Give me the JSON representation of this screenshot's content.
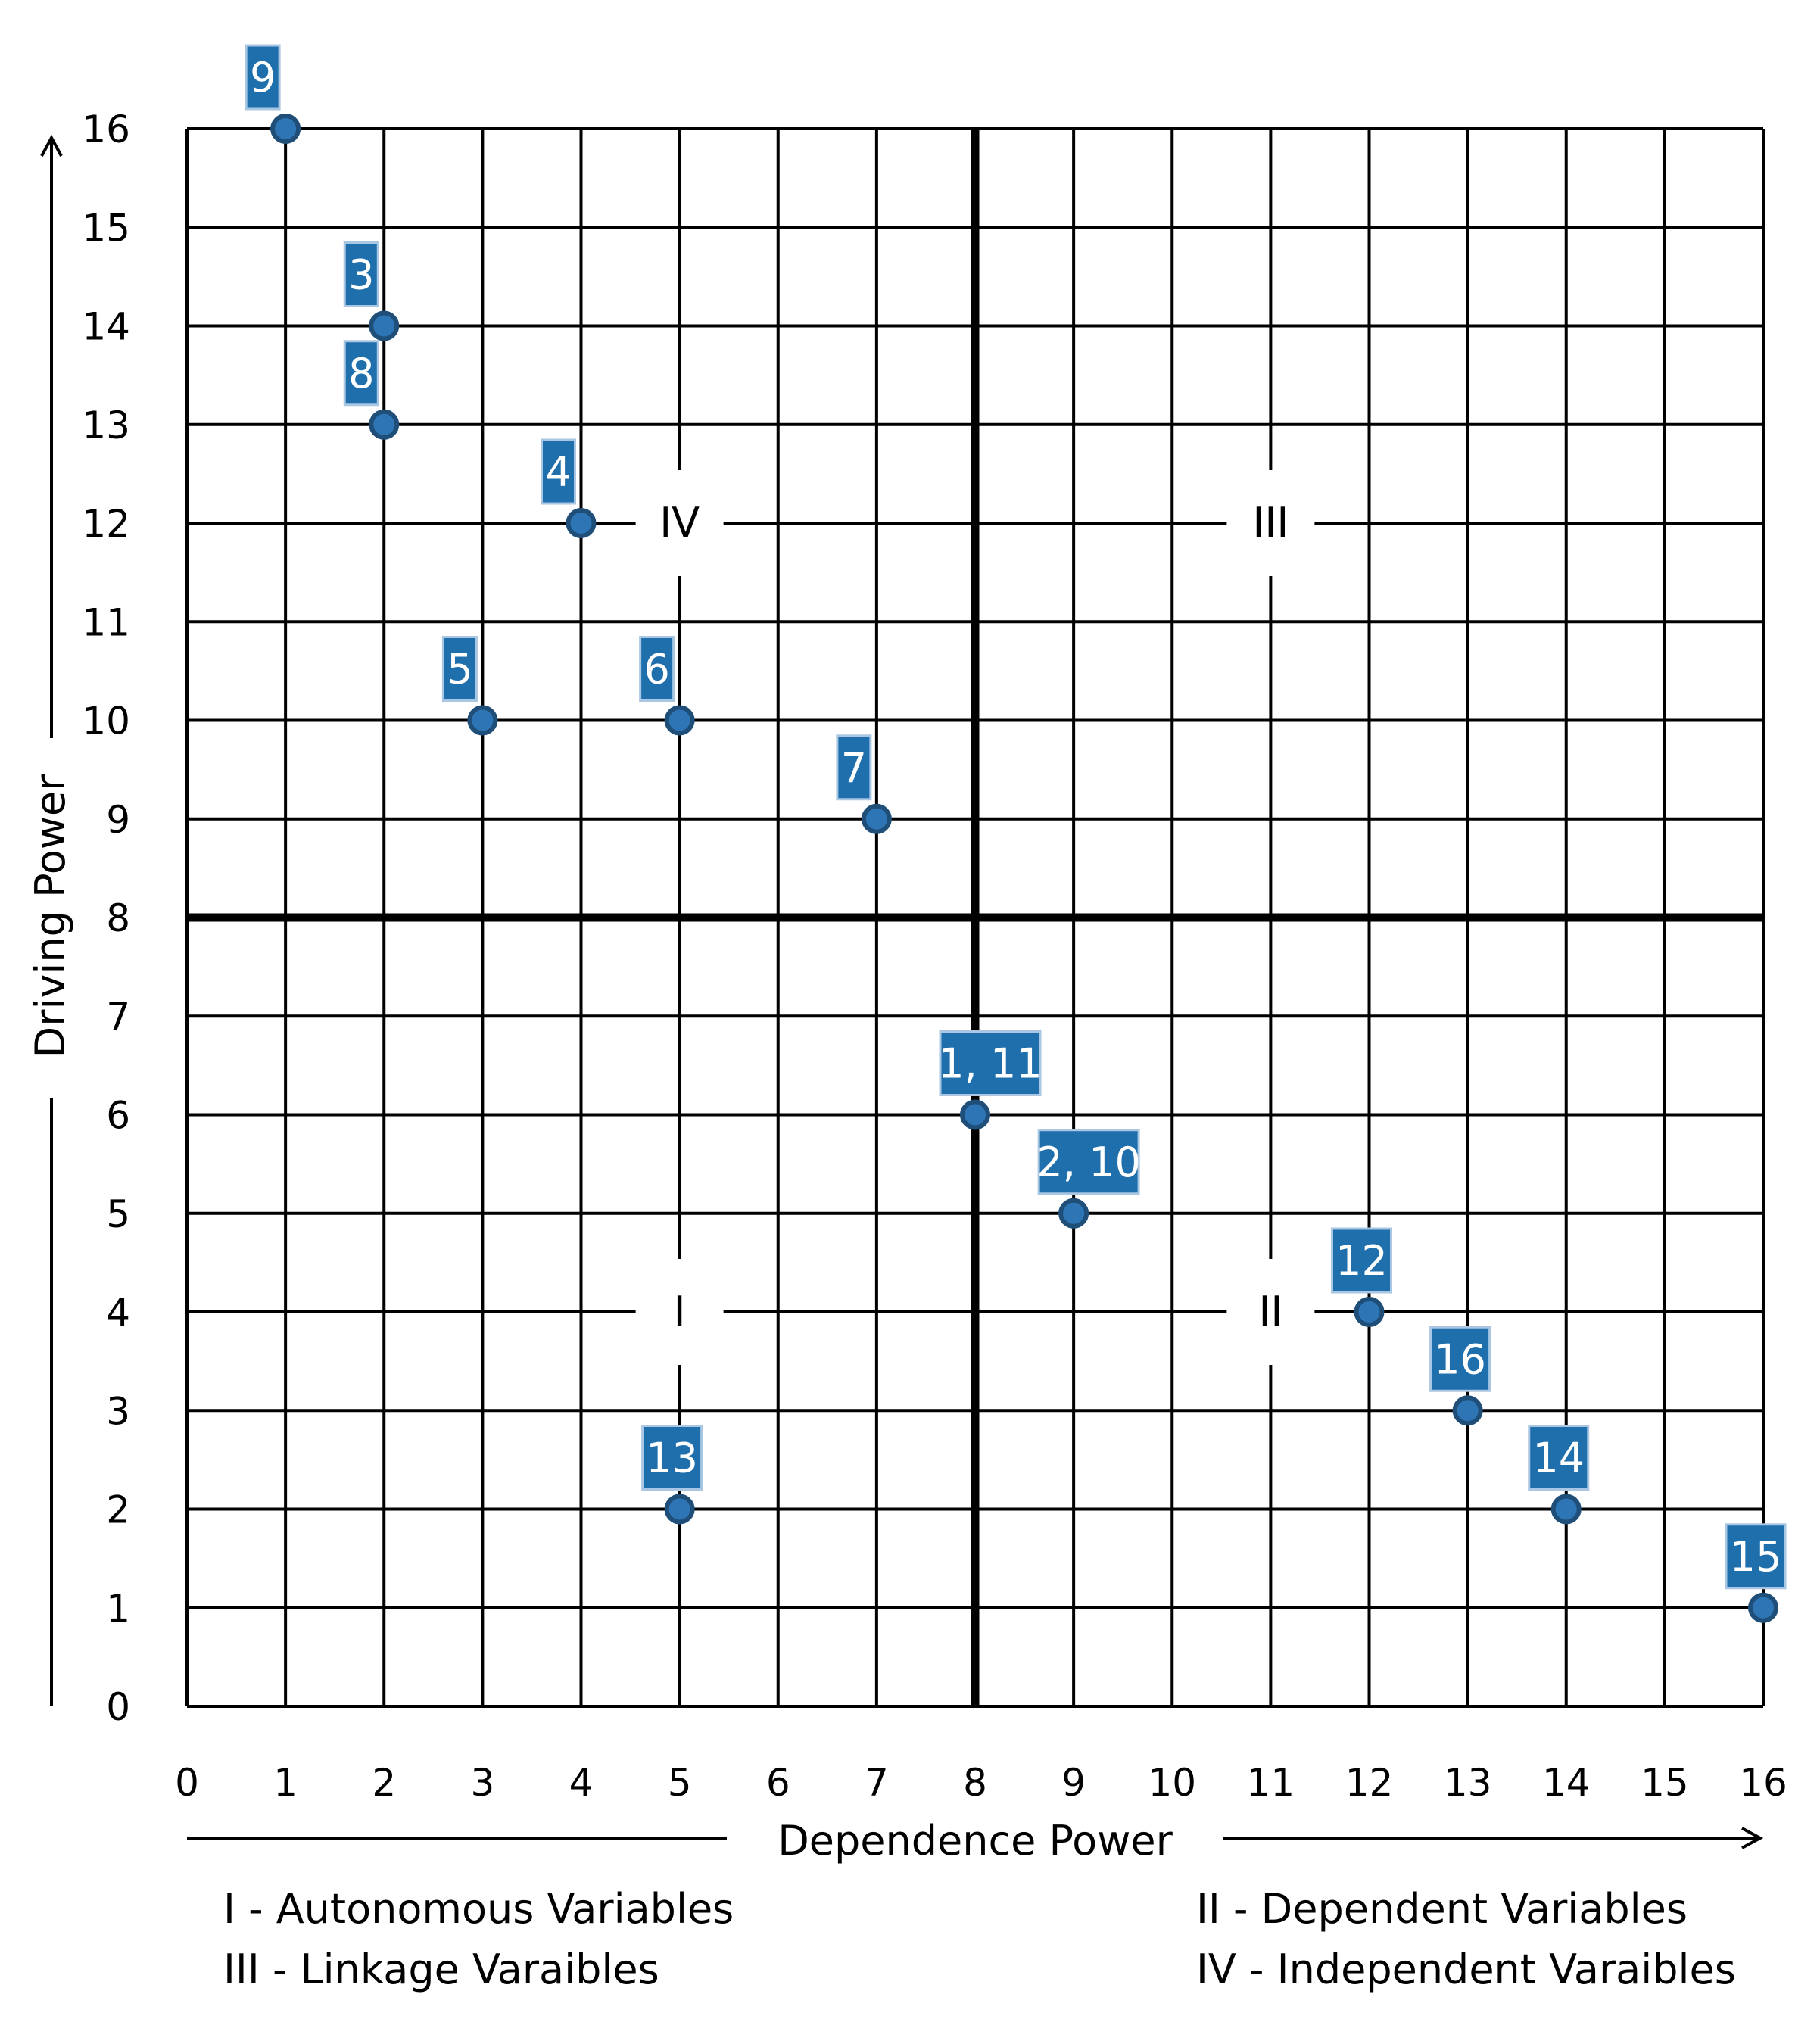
{
  "chart_data": {
    "type": "scatter",
    "title": "",
    "xlabel": "Dependence Power",
    "ylabel": "Driving Power",
    "xlim": [
      0,
      16
    ],
    "ylim": [
      0,
      16
    ],
    "xticks": [
      "0",
      "1",
      "2",
      "3",
      "4",
      "5",
      "6",
      "7",
      "8",
      "9",
      "10",
      "11",
      "12",
      "13",
      "14",
      "15",
      "16"
    ],
    "yticks": [
      "0",
      "1",
      "2",
      "3",
      "4",
      "5",
      "6",
      "7",
      "8",
      "9",
      "10",
      "11",
      "12",
      "13",
      "14",
      "15",
      "16"
    ],
    "grid": true,
    "quadrant_divider": {
      "x": 8,
      "y": 8
    },
    "quadrant_labels": [
      {
        "text": "IV",
        "x": 5,
        "y": 12
      },
      {
        "text": "III",
        "x": 11,
        "y": 12
      },
      {
        "text": "I",
        "x": 5,
        "y": 4
      },
      {
        "text": "II",
        "x": 11,
        "y": 4
      }
    ],
    "points": [
      {
        "label": "9",
        "x": 1,
        "y": 16
      },
      {
        "label": "3",
        "x": 2,
        "y": 14
      },
      {
        "label": "8",
        "x": 2,
        "y": 13
      },
      {
        "label": "4",
        "x": 4,
        "y": 12
      },
      {
        "label": "5",
        "x": 3,
        "y": 10
      },
      {
        "label": "6",
        "x": 5,
        "y": 10
      },
      {
        "label": "7",
        "x": 7,
        "y": 9
      },
      {
        "label": "1, 11",
        "x": 8,
        "y": 6
      },
      {
        "label": "2, 10",
        "x": 9,
        "y": 5
      },
      {
        "label": "12",
        "x": 12,
        "y": 4
      },
      {
        "label": "16",
        "x": 13,
        "y": 3
      },
      {
        "label": "13",
        "x": 5,
        "y": 2
      },
      {
        "label": "14",
        "x": 14,
        "y": 2
      },
      {
        "label": "15",
        "x": 16,
        "y": 1
      }
    ],
    "legend": [
      "I - Autonomous Variables",
      "III - Linkage Varaibles",
      "II - Dependent Variables",
      "IV - Independent Varaibles"
    ],
    "colors": {
      "point": "#2e75b6",
      "point_stroke": "#1f4e79",
      "label_bg": "#1f6fad",
      "label_text": "#ffffff",
      "grid": "#000000"
    }
  }
}
